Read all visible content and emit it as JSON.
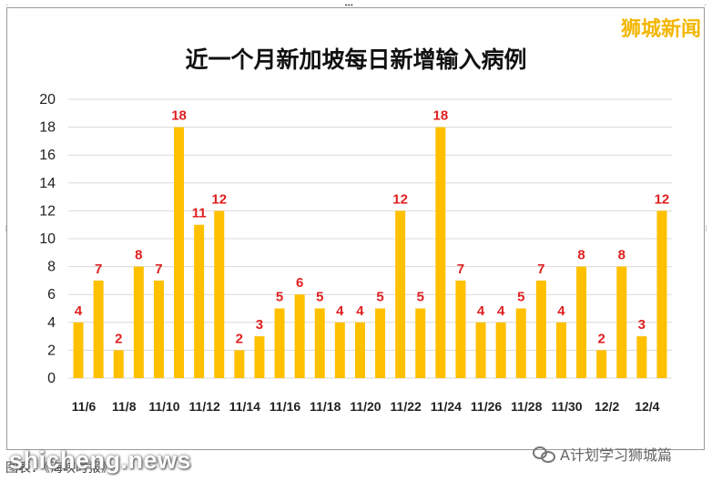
{
  "title": "近一个月新加坡每日新增输入病例",
  "brand": "狮城新闻",
  "watermark": "shicheng.news",
  "account": "A计划学习狮城篇",
  "caption": "图表：《海峡时报》",
  "colors": {
    "bar": "#FFC000",
    "label": "#E02020",
    "grid": "#D9D9D9"
  },
  "chart_data": {
    "type": "bar",
    "title": "近一个月新加坡每日新增输入病例",
    "categories": [
      "11/6",
      "11/7",
      "11/8",
      "11/9",
      "11/10",
      "11/11",
      "11/12",
      "11/13",
      "11/14",
      "11/15",
      "11/16",
      "11/17",
      "11/18",
      "11/19",
      "11/20",
      "11/21",
      "11/22",
      "11/23",
      "11/24",
      "11/25",
      "11/26",
      "11/27",
      "11/28",
      "11/29",
      "11/30",
      "12/1",
      "12/2",
      "12/3",
      "12/4",
      "12/5"
    ],
    "tick_labels": [
      "11/6",
      "11/8",
      "11/10",
      "11/12",
      "11/14",
      "11/16",
      "11/18",
      "11/20",
      "11/22",
      "11/24",
      "11/26",
      "11/28",
      "11/30",
      "12/2",
      "12/4"
    ],
    "values": [
      4,
      7,
      2,
      8,
      7,
      18,
      11,
      12,
      2,
      3,
      5,
      6,
      5,
      4,
      4,
      5,
      12,
      5,
      18,
      7,
      4,
      4,
      5,
      7,
      4,
      8,
      2,
      8,
      3,
      12
    ],
    "ylim": [
      0,
      20
    ],
    "yticks": [
      0,
      2,
      4,
      6,
      8,
      10,
      12,
      14,
      16,
      18,
      20
    ],
    "grid": true,
    "data_labels": true
  }
}
